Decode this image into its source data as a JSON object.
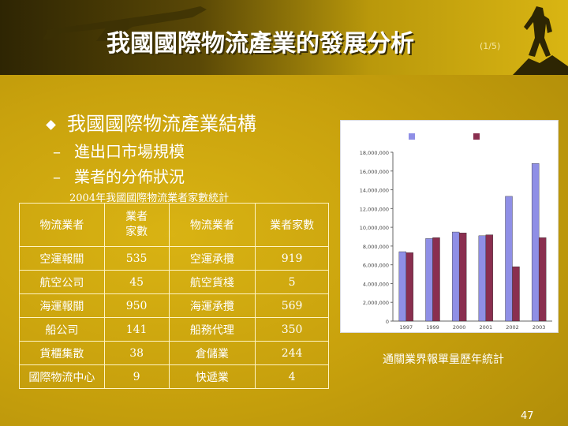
{
  "slide": {
    "title": "我國國際物流產業的發展分析",
    "page_indicator": "(1/5)",
    "page_number": "47"
  },
  "bullets": {
    "main": "我國國際物流產業結構",
    "subs": [
      {
        "dash": "–",
        "text": "進出口市場規模"
      },
      {
        "dash": "–",
        "text": "業者的分佈狀況"
      }
    ]
  },
  "table": {
    "caption": "2004年我國國際物流業者家數統計",
    "headers": [
      "物流業者",
      "業者家數",
      "物流業者",
      "業者家數"
    ],
    "rows": [
      [
        "空運報關",
        "535",
        "空運承攬",
        "919"
      ],
      [
        "航空公司",
        "45",
        "航空貨棧",
        "5"
      ],
      [
        "海運報關",
        "950",
        "海運承攬",
        "569"
      ],
      [
        "船公司",
        "141",
        "船務代理",
        "350"
      ],
      [
        "貨櫃集散",
        "38",
        "倉儲業",
        "244"
      ],
      [
        "國際物流中心",
        "9",
        "快遞業",
        "4"
      ]
    ]
  },
  "chart_caption": "通關業界報單量歷年統計",
  "chart_data": {
    "type": "bar",
    "categories": [
      "1997",
      "1999",
      "2000",
      "2001",
      "2002",
      "2003"
    ],
    "series": [
      {
        "name": "",
        "color": "#8f8fe6",
        "values": [
          7400000,
          8800000,
          9500000,
          9100000,
          13300000,
          16800000
        ]
      },
      {
        "name": "",
        "color": "#8a2f4f",
        "values": [
          7300000,
          8900000,
          9400000,
          9200000,
          5800000,
          8900000
        ]
      }
    ],
    "ylim": [
      0,
      18000000
    ],
    "yticks": [
      "0",
      "2,000,000",
      "4,000,000",
      "6,000,000",
      "8,000,000",
      "10,000,000",
      "12,000,000",
      "14,000,000",
      "16,000,000",
      "18,000,000"
    ],
    "grid": false,
    "legend": "top"
  },
  "colors": {
    "accent": "#c9a20d",
    "text": "#ffffff",
    "table_border": "#fff4c2"
  },
  "icons": {
    "header_left": "airplane-icon",
    "header_right": "climber-icon",
    "bullet": "diamond-bullet-icon"
  }
}
